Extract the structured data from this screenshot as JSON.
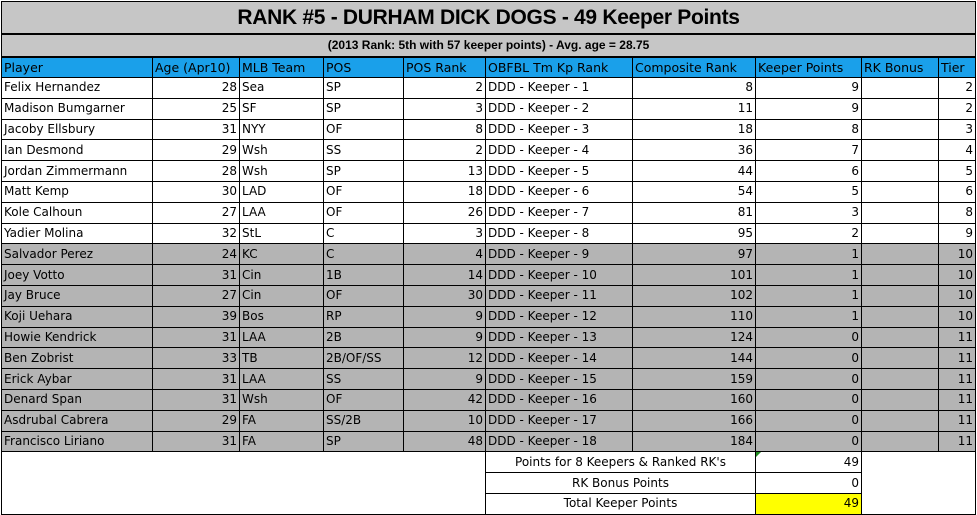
{
  "title": "RANK #5 - DURHAM DICK DOGS - 49 Keeper Points",
  "subtitle": "(2013 Rank: 5th with 57 keeper points) - Avg. age = 28.75",
  "colors": {
    "header": "#1aa0ea",
    "title_bg": "#c6c6c6",
    "non_keeper_row": "#b4b4b4",
    "total_highlight": "#ffff00"
  },
  "columns": [
    "Player",
    "Age (Apr10)",
    "MLB Team",
    "POS",
    "POS Rank",
    "OBFBL Tm Kp Rank",
    "Composite Rank",
    "Keeper Points",
    "RK Bonus",
    "Tier"
  ],
  "rows": [
    {
      "player": "Felix Hernandez",
      "age": "28",
      "team": "Sea",
      "pos": "SP",
      "pos_rank": "2",
      "kp_rank": "DDD - Keeper - 1",
      "composite": "8",
      "keeper_points": "9",
      "rk_bonus": "",
      "tier": "2",
      "gray": false
    },
    {
      "player": "Madison Bumgarner",
      "age": "25",
      "team": "SF",
      "pos": "SP",
      "pos_rank": "3",
      "kp_rank": "DDD - Keeper - 2",
      "composite": "11",
      "keeper_points": "9",
      "rk_bonus": "",
      "tier": "2",
      "gray": false
    },
    {
      "player": "Jacoby Ellsbury",
      "age": "31",
      "team": "NYY",
      "pos": "OF",
      "pos_rank": "8",
      "kp_rank": "DDD - Keeper - 3",
      "composite": "18",
      "keeper_points": "8",
      "rk_bonus": "",
      "tier": "3",
      "gray": false
    },
    {
      "player": "Ian Desmond",
      "age": "29",
      "team": "Wsh",
      "pos": "SS",
      "pos_rank": "2",
      "kp_rank": "DDD - Keeper - 4",
      "composite": "36",
      "keeper_points": "7",
      "rk_bonus": "",
      "tier": "4",
      "gray": false
    },
    {
      "player": "Jordan Zimmermann",
      "age": "28",
      "team": "Wsh",
      "pos": "SP",
      "pos_rank": "13",
      "kp_rank": "DDD - Keeper - 5",
      "composite": "44",
      "keeper_points": "6",
      "rk_bonus": "",
      "tier": "5",
      "gray": false
    },
    {
      "player": "Matt Kemp",
      "age": "30",
      "team": "LAD",
      "pos": "OF",
      "pos_rank": "18",
      "kp_rank": "DDD - Keeper - 6",
      "composite": "54",
      "keeper_points": "5",
      "rk_bonus": "",
      "tier": "6",
      "gray": false
    },
    {
      "player": "Kole Calhoun",
      "age": "27",
      "team": "LAA",
      "pos": "OF",
      "pos_rank": "26",
      "kp_rank": "DDD - Keeper - 7",
      "composite": "81",
      "keeper_points": "3",
      "rk_bonus": "",
      "tier": "8",
      "gray": false
    },
    {
      "player": "Yadier Molina",
      "age": "32",
      "team": "StL",
      "pos": "C",
      "pos_rank": "3",
      "kp_rank": "DDD - Keeper - 8",
      "composite": "95",
      "keeper_points": "2",
      "rk_bonus": "",
      "tier": "9",
      "gray": false
    },
    {
      "player": "Salvador Perez",
      "age": "24",
      "team": "KC",
      "pos": "C",
      "pos_rank": "4",
      "kp_rank": "DDD - Keeper - 9",
      "composite": "97",
      "keeper_points": "1",
      "rk_bonus": "",
      "tier": "10",
      "gray": true
    },
    {
      "player": "Joey Votto",
      "age": "31",
      "team": "Cin",
      "pos": "1B",
      "pos_rank": "14",
      "kp_rank": "DDD - Keeper - 10",
      "composite": "101",
      "keeper_points": "1",
      "rk_bonus": "",
      "tier": "10",
      "gray": true
    },
    {
      "player": "Jay Bruce",
      "age": "27",
      "team": "Cin",
      "pos": "OF",
      "pos_rank": "30",
      "kp_rank": "DDD - Keeper - 11",
      "composite": "102",
      "keeper_points": "1",
      "rk_bonus": "",
      "tier": "10",
      "gray": true
    },
    {
      "player": "Koji Uehara",
      "age": "39",
      "team": "Bos",
      "pos": "RP",
      "pos_rank": "9",
      "kp_rank": "DDD - Keeper - 12",
      "composite": "110",
      "keeper_points": "1",
      "rk_bonus": "",
      "tier": "10",
      "gray": true
    },
    {
      "player": "Howie Kendrick",
      "age": "31",
      "team": "LAA",
      "pos": "2B",
      "pos_rank": "9",
      "kp_rank": "DDD - Keeper - 13",
      "composite": "124",
      "keeper_points": "0",
      "rk_bonus": "",
      "tier": "11",
      "gray": true
    },
    {
      "player": "Ben Zobrist",
      "age": "33",
      "team": "TB",
      "pos": "2B/OF/SS",
      "pos_rank": "12",
      "kp_rank": "DDD - Keeper - 14",
      "composite": "144",
      "keeper_points": "0",
      "rk_bonus": "",
      "tier": "11",
      "gray": true
    },
    {
      "player": "Erick Aybar",
      "age": "31",
      "team": "LAA",
      "pos": "SS",
      "pos_rank": "9",
      "kp_rank": "DDD - Keeper - 15",
      "composite": "159",
      "keeper_points": "0",
      "rk_bonus": "",
      "tier": "11",
      "gray": true
    },
    {
      "player": "Denard Span",
      "age": "31",
      "team": "Wsh",
      "pos": "OF",
      "pos_rank": "42",
      "kp_rank": "DDD - Keeper - 16",
      "composite": "160",
      "keeper_points": "0",
      "rk_bonus": "",
      "tier": "11",
      "gray": true
    },
    {
      "player": "Asdrubal Cabrera",
      "age": "29",
      "team": "FA",
      "pos": "SS/2B",
      "pos_rank": "10",
      "kp_rank": "DDD - Keeper - 17",
      "composite": "166",
      "keeper_points": "0",
      "rk_bonus": "",
      "tier": "11",
      "gray": true
    },
    {
      "player": "Francisco Liriano",
      "age": "31",
      "team": "FA",
      "pos": "SP",
      "pos_rank": "48",
      "kp_rank": "DDD - Keeper - 18",
      "composite": "184",
      "keeper_points": "0",
      "rk_bonus": "",
      "tier": "11",
      "gray": true
    }
  ],
  "summary": [
    {
      "label": "Points for 8 Keepers & Ranked RK's",
      "value": "49"
    },
    {
      "label": "RK Bonus Points",
      "value": "0"
    },
    {
      "label": "Total Keeper Points",
      "value": "49"
    }
  ]
}
